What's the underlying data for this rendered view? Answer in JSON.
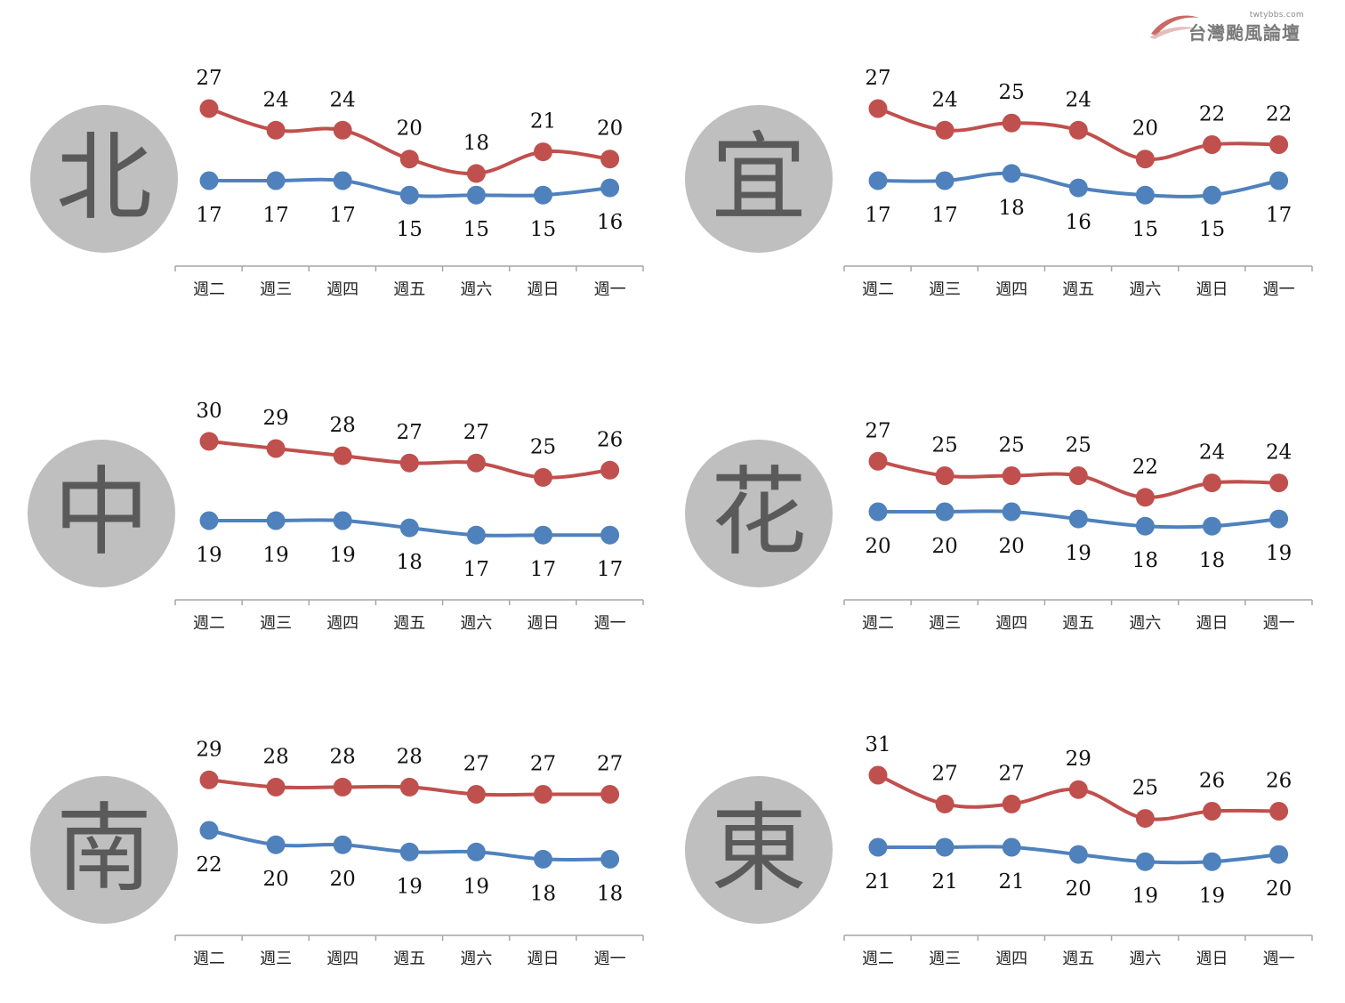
{
  "logo": {
    "url": "twtybbs.com",
    "text": "台灣颱風論壇"
  },
  "colors": {
    "high": "#c0504d",
    "low": "#4f81bd",
    "axis": "#a6a6a6",
    "circle": "#bfbfbf",
    "char": "#5a5a5a"
  },
  "chart_data": [
    {
      "type": "line",
      "region": "北",
      "categories": [
        "週二",
        "週三",
        "週四",
        "週五",
        "週六",
        "週日",
        "週一"
      ],
      "series": [
        {
          "values": [
            27,
            24,
            24,
            20,
            18,
            21,
            20
          ]
        },
        {
          "values": [
            17,
            17,
            17,
            15,
            15,
            15,
            16
          ]
        }
      ]
    },
    {
      "type": "line",
      "region": "宜",
      "categories": [
        "週二",
        "週三",
        "週四",
        "週五",
        "週六",
        "週日",
        "週一"
      ],
      "series": [
        {
          "values": [
            27,
            24,
            25,
            24,
            20,
            22,
            22
          ]
        },
        {
          "values": [
            17,
            17,
            18,
            16,
            15,
            15,
            17
          ]
        }
      ]
    },
    {
      "type": "line",
      "region": "中",
      "categories": [
        "週二",
        "週三",
        "週四",
        "週五",
        "週六",
        "週日",
        "週一"
      ],
      "series": [
        {
          "values": [
            30,
            29,
            28,
            27,
            27,
            25,
            26
          ]
        },
        {
          "values": [
            19,
            19,
            19,
            18,
            17,
            17,
            17
          ]
        }
      ]
    },
    {
      "type": "line",
      "region": "花",
      "categories": [
        "週二",
        "週三",
        "週四",
        "週五",
        "週六",
        "週日",
        "週一"
      ],
      "series": [
        {
          "values": [
            27,
            25,
            25,
            25,
            22,
            24,
            24
          ]
        },
        {
          "values": [
            20,
            20,
            20,
            19,
            18,
            18,
            19
          ]
        }
      ]
    },
    {
      "type": "line",
      "region": "南",
      "categories": [
        "週二",
        "週三",
        "週四",
        "週五",
        "週六",
        "週日",
        "週一"
      ],
      "series": [
        {
          "values": [
            29,
            28,
            28,
            28,
            27,
            27,
            27
          ]
        },
        {
          "values": [
            22,
            20,
            20,
            19,
            19,
            18,
            18
          ]
        }
      ]
    },
    {
      "type": "line",
      "region": "東",
      "categories": [
        "週二",
        "週三",
        "週四",
        "週五",
        "週六",
        "週日",
        "週一"
      ],
      "series": [
        {
          "values": [
            31,
            27,
            27,
            29,
            25,
            26,
            26
          ]
        },
        {
          "values": [
            21,
            21,
            21,
            20,
            19,
            19,
            20
          ]
        }
      ]
    }
  ]
}
